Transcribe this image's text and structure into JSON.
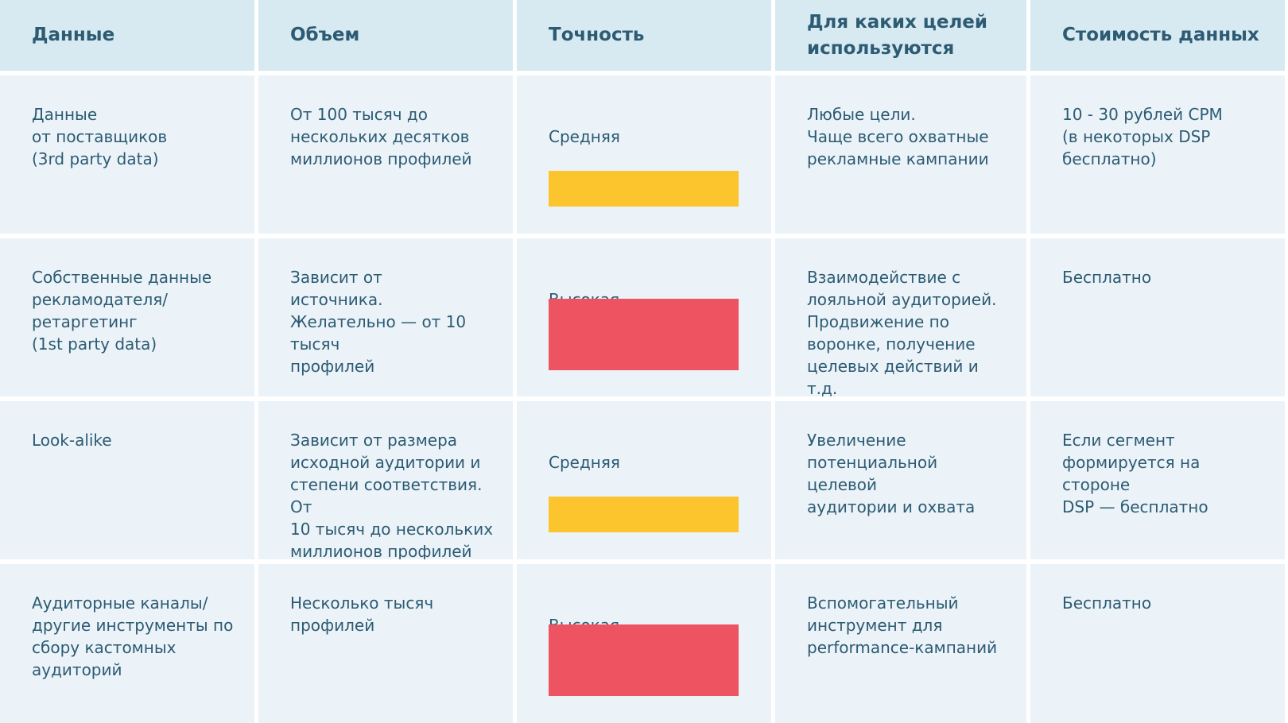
{
  "table": {
    "headers": [
      "Данные",
      "Объем",
      "Точность",
      "Для каких целей\nиспользуются",
      "Стоимость данных"
    ],
    "rows": [
      {
        "data": "Данные\nот поставщиков\n(3rd party data)",
        "volume": "От 100 тысяч до\nнескольких десятков\nмиллионов профилей",
        "accuracy": "Средняя",
        "accuracy_level": "medium",
        "purpose": "Любые цели.\nЧаще всего охватные\nрекламные кампании",
        "cost": "10 - 30 рублей CPM\n(в некоторых DSP\nбесплатно)"
      },
      {
        "data": "Собственные данные\nрекламодателя/\nретаргетинг\n(1st party data)",
        "volume": "Зависит от\nисточника.\nЖелательно — от 10 тысяч\nпрофилей",
        "accuracy": "Высокая",
        "accuracy_level": "high",
        "purpose": "Взаимодействие с\nлояльной аудиторией.\nПродвижение по\nворонке, получение\nцелевых действий и т.д.",
        "cost": "Бесплатно"
      },
      {
        "data": "Look-alike",
        "volume": "Зависит от размера\nисходной аудитории и\nстепени соответствия. От\n10 тысяч до нескольких\nмиллионов профилей",
        "accuracy": "Средняя",
        "accuracy_level": "medium",
        "purpose": "Увеличение\nпотенциальной целевой\nаудитории и охвата",
        "cost": "Если сегмент\nформируется на стороне\nDSP — бесплатно"
      },
      {
        "data": "Аудиторные каналы/\nдругие инструменты по\nсбору кастомных\nаудиторий",
        "volume": "Несколько тысяч\nпрофилей",
        "accuracy": "Высокая",
        "accuracy_level": "high",
        "purpose": "Вспомогательный\nинструмент для\nperformance-кампаний",
        "cost": "Бесплатно"
      }
    ]
  },
  "colors": {
    "header_bg": "#d7e9f1",
    "cell_bg": "#ebf3f8",
    "text": "#2c5b73",
    "medium": "#fcc42d",
    "high": "#ee5362"
  }
}
